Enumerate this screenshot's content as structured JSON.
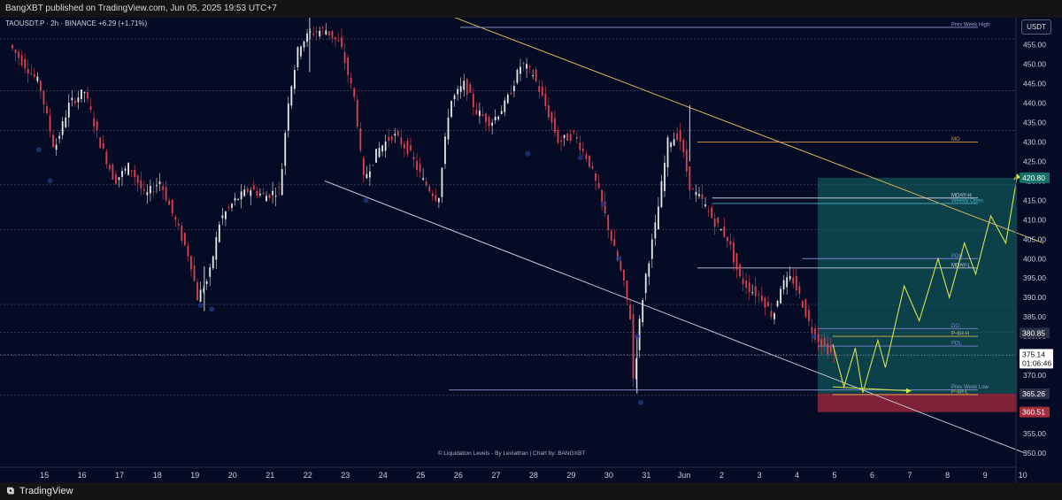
{
  "header": {
    "published_text": "BangXBT published on TradingView.com, Jun 05, 2025 19:53 UTC+7",
    "symbol_line": "TAOUSDT.P · 2h · BINANCE  +6.29 (+1.71%)",
    "currency_button": "USDT"
  },
  "footer": {
    "brand": "TradingView",
    "credit": "© Liquidation Levels - By Leviathan | Chart by: BANGXBT"
  },
  "colors": {
    "background": "#050b24",
    "bull_candle": "#e8e8e8",
    "bear_candle": "#e0404f",
    "target_zone": "#14706a",
    "stop_zone": "#a82a3d",
    "trendline": "#c8c8dc",
    "resistance": "#d9b45a",
    "projection": "#d7e34a"
  },
  "chart_data": {
    "type": "candlestick",
    "ylim": [
      347,
      462
    ],
    "y_ticks": [
      350,
      355,
      360,
      365,
      370,
      375,
      380,
      385,
      390,
      395,
      400,
      405,
      410,
      415,
      420,
      425,
      430,
      435,
      440,
      445,
      450,
      455
    ],
    "y_tick_labels": [
      "350.00",
      "355.00",
      "360.00",
      "365.00",
      "370.00",
      "375.00",
      "380.00",
      "385.00",
      "390.00",
      "395.00",
      "400.00",
      "405.00",
      "410.00",
      "415.00",
      "420.00",
      "425.00",
      "430.00",
      "435.00",
      "440.00",
      "445.00",
      "450.00",
      "455.00"
    ],
    "x_ticks": [
      {
        "label": "15",
        "day": 15
      },
      {
        "label": "16",
        "day": 16
      },
      {
        "label": "17",
        "day": 17
      },
      {
        "label": "18",
        "day": 18
      },
      {
        "label": "19",
        "day": 19
      },
      {
        "label": "20",
        "day": 20
      },
      {
        "label": "21",
        "day": 21
      },
      {
        "label": "22",
        "day": 22
      },
      {
        "label": "23",
        "day": 23
      },
      {
        "label": "24",
        "day": 24
      },
      {
        "label": "25",
        "day": 25
      },
      {
        "label": "26",
        "day": 26
      },
      {
        "label": "27",
        "day": 27
      },
      {
        "label": "28",
        "day": 28
      },
      {
        "label": "29",
        "day": 29
      },
      {
        "label": "30",
        "day": 30
      },
      {
        "label": "31",
        "day": 31
      },
      {
        "label": "Jun",
        "day": 32
      },
      {
        "label": "2",
        "day": 33
      },
      {
        "label": "3",
        "day": 34
      },
      {
        "label": "4",
        "day": 35
      },
      {
        "label": "5",
        "day": 36
      },
      {
        "label": "6",
        "day": 37
      },
      {
        "label": "7",
        "day": 38
      },
      {
        "label": "8",
        "day": 39
      },
      {
        "label": "9",
        "day": 40
      },
      {
        "label": "10",
        "day": 41
      }
    ],
    "price_path": [
      [
        14.6,
        455
      ],
      [
        15.0,
        450
      ],
      [
        15.4,
        445
      ],
      [
        15.8,
        428
      ],
      [
        16.2,
        440
      ],
      [
        16.6,
        443
      ],
      [
        17.0,
        430
      ],
      [
        17.4,
        420
      ],
      [
        17.8,
        424
      ],
      [
        18.2,
        416
      ],
      [
        18.6,
        420
      ],
      [
        19.0,
        410
      ],
      [
        19.4,
        400
      ],
      [
        19.6,
        390
      ],
      [
        19.9,
        395
      ],
      [
        20.2,
        410
      ],
      [
        20.6,
        415
      ],
      [
        21.0,
        418
      ],
      [
        21.4,
        416
      ],
      [
        21.8,
        418
      ],
      [
        22.0,
        440
      ],
      [
        22.3,
        455
      ],
      [
        22.6,
        458
      ],
      [
        23.0,
        459
      ],
      [
        23.4,
        455
      ],
      [
        23.8,
        440
      ],
      [
        24.0,
        420
      ],
      [
        24.4,
        428
      ],
      [
        24.8,
        432
      ],
      [
        25.2,
        428
      ],
      [
        25.6,
        420
      ],
      [
        26.0,
        415
      ],
      [
        26.3,
        440
      ],
      [
        26.7,
        445
      ],
      [
        27.0,
        438
      ],
      [
        27.4,
        435
      ],
      [
        27.8,
        440
      ],
      [
        28.2,
        450
      ],
      [
        28.5,
        448
      ],
      [
        28.9,
        438
      ],
      [
        29.2,
        430
      ],
      [
        29.6,
        432
      ],
      [
        30.0,
        425
      ],
      [
        30.3,
        416
      ],
      [
        30.6,
        405
      ],
      [
        30.9,
        395
      ],
      [
        31.1,
        385
      ],
      [
        31.2,
        366
      ],
      [
        31.3,
        380
      ],
      [
        31.5,
        395
      ],
      [
        31.8,
        410
      ],
      [
        32.1,
        430
      ],
      [
        32.4,
        432
      ],
      [
        32.7,
        418
      ],
      [
        33.0,
        415
      ],
      [
        33.3,
        410
      ],
      [
        33.7,
        405
      ],
      [
        34.0,
        395
      ],
      [
        34.3,
        392
      ],
      [
        34.6,
        390
      ],
      [
        34.9,
        385
      ],
      [
        35.1,
        393
      ],
      [
        35.4,
        395
      ],
      [
        35.7,
        388
      ],
      [
        35.9,
        382
      ],
      [
        36.2,
        378
      ],
      [
        36.5,
        375.1
      ]
    ],
    "wicks": [
      {
        "day": 31.2,
        "low": 365.3,
        "high": 380
      },
      {
        "day": 32.6,
        "high": 439.5,
        "low": 425
      },
      {
        "day": 19.7,
        "low": 386.5,
        "high": 398
      },
      {
        "day": 22.5,
        "high": 462,
        "low": 448
      }
    ],
    "current_price": {
      "value": 375.14,
      "label": "375.14",
      "countdown": "01:06:46"
    },
    "price_boxes": [
      {
        "value": 420.8,
        "label": "420.80",
        "bg": "#14706a"
      },
      {
        "value": 380.85,
        "label": "380.85",
        "bg": "#2b2f45"
      },
      {
        "value": 365.26,
        "label": "365.26",
        "bg": "#2b2f45"
      },
      {
        "value": 360.51,
        "label": "360.51",
        "bg": "#a82a3d"
      }
    ],
    "levels": [
      {
        "name": "Prev Week High",
        "value": 459.5,
        "from": 26.5,
        "to": 41.2,
        "color": "#8f9bd0"
      },
      {
        "name": "MO",
        "value": 430,
        "from": 32.8,
        "to": 41.2,
        "color": "#d39a4c"
      },
      {
        "name": "MDAY-H",
        "value": 415.6,
        "from": 33.2,
        "to": 41.2,
        "color": "#c8c8dc"
      },
      {
        "name": "Weekly Open",
        "value": 414.2,
        "from": 33.2,
        "to": 41.2,
        "color": "#46b4c4"
      },
      {
        "name": "PDH",
        "value": 400,
        "from": 35.6,
        "to": 41.2,
        "color": "#7c86d6"
      },
      {
        "name": "MDAY-L",
        "value": 397.6,
        "from": 32.8,
        "to": 41.2,
        "color": "#c8c8dc"
      },
      {
        "name": "DO",
        "value": 382,
        "from": 36.0,
        "to": 41.2,
        "color": "#7c86d6"
      },
      {
        "name": "P-4H-H",
        "value": 380,
        "from": 36.4,
        "to": 41.2,
        "color": "#d9b45a"
      },
      {
        "name": "PDL",
        "value": 377.5,
        "from": 36.0,
        "to": 41.2,
        "color": "#7c86d6"
      },
      {
        "name": "Prev Week Low",
        "value": 366.2,
        "from": 26.2,
        "to": 41.2,
        "color": "#8f9bd0"
      },
      {
        "name": "P-4H-L",
        "value": 365,
        "from": 36.4,
        "to": 41.2,
        "color": "#d9b45a"
      }
    ],
    "grid_levels": [
      456.5,
      443.2,
      433.0,
      419.0,
      407.5,
      388.2,
      381.0,
      375.3,
      364.8
    ],
    "trendlines": [
      {
        "name": "resistance",
        "from": [
          26.1,
          463
        ],
        "to": [
          42.0,
          404
        ],
        "color": "#d9b45a"
      },
      {
        "name": "support",
        "from": [
          22.9,
          420
        ],
        "to": [
          41.5,
          350
        ],
        "color": "#c8c8dc"
      }
    ],
    "position": {
      "entry": 365.26,
      "target": 420.8,
      "stop": 360.51,
      "from_day": 36.0,
      "to_day": 41.3
    },
    "projection_path": [
      [
        36.4,
        378
      ],
      [
        36.7,
        367
      ],
      [
        37.0,
        377
      ],
      [
        37.2,
        365.5
      ],
      [
        37.6,
        379
      ],
      [
        37.8,
        372
      ],
      [
        38.3,
        393
      ],
      [
        38.7,
        384
      ],
      [
        39.2,
        400
      ],
      [
        39.5,
        390
      ],
      [
        39.9,
        404
      ],
      [
        40.2,
        396
      ],
      [
        40.6,
        411
      ],
      [
        41.0,
        404
      ],
      [
        41.3,
        421
      ]
    ],
    "lower_arrow": {
      "from": [
        36.4,
        367
      ],
      "to": [
        38.4,
        366
      ]
    }
  }
}
